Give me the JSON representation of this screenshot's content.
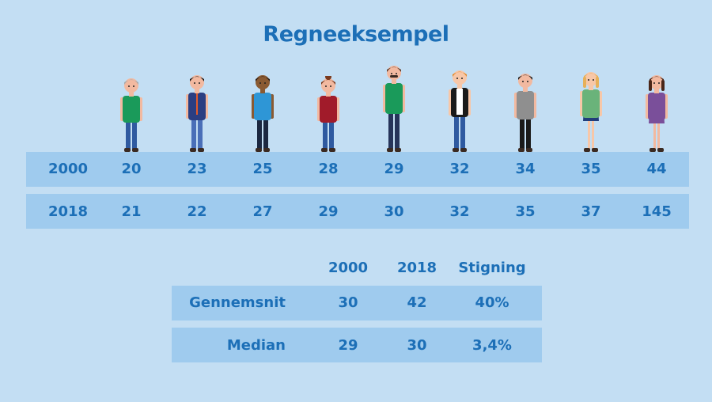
{
  "title": "Regneeksempel",
  "people": [
    {
      "icon": "elderly-woman-icon",
      "shirt": "#1a9a5a",
      "pants": "#2f5aa0",
      "hair": "#aaaaaa",
      "skin": "#f2b9a0"
    },
    {
      "icon": "man-in-suit-icon",
      "shirt": "#2b3e82",
      "pants": "#4a6fb8",
      "hair": "#1a1a1a",
      "skin": "#f2b9a0"
    },
    {
      "icon": "man-blue-shirt-icon",
      "shirt": "#2e96d6",
      "pants": "#1b2740",
      "hair": "#2a1a10",
      "skin": "#8a5a32"
    },
    {
      "icon": "girl-red-shirt-icon",
      "shirt": "#a11b2a",
      "pants": "#2f5aa0",
      "hair": "#7a3a1e",
      "skin": "#f2b9a0"
    },
    {
      "icon": "older-man-green-jacket-icon",
      "shirt": "#1a9a5a",
      "pants": "#26345a",
      "hair": "#5a3a2a",
      "skin": "#f2b9a0"
    },
    {
      "icon": "redhead-man-black-jacket-icon",
      "shirt": "#1a1a1a",
      "pants": "#2f5aa0",
      "hair": "#e2892a",
      "skin": "#f7c7a8"
    },
    {
      "icon": "man-grey-shirt-icon",
      "shirt": "#8f8f8f",
      "pants": "#1a1a1a",
      "hair": "#1a1a1a",
      "skin": "#f2b9a0"
    },
    {
      "icon": "blonde-woman-icon",
      "shirt": "#6ab37a",
      "pants": "#223d7a",
      "hair": "#e6b05a",
      "skin": "#f7c7a8"
    },
    {
      "icon": "woman-purple-dress-icon",
      "shirt": "#7a4f9a",
      "pants": "#7a4f9a",
      "hair": "#4a2618",
      "skin": "#f2b9a0"
    }
  ],
  "ages": {
    "rows": [
      {
        "year": "2000",
        "values": [
          "20",
          "23",
          "25",
          "28",
          "29",
          "32",
          "34",
          "35",
          "44"
        ]
      },
      {
        "year": "2018",
        "values": [
          "21",
          "22",
          "27",
          "29",
          "30",
          "32",
          "35",
          "37",
          "145"
        ]
      }
    ]
  },
  "summary": {
    "headers": [
      "2000",
      "2018",
      "Stigning"
    ],
    "rows": [
      {
        "label": "Gennemsnit",
        "values": [
          "30",
          "42",
          "40%"
        ]
      },
      {
        "label": "Median",
        "values": [
          "29",
          "30",
          "3,4%"
        ]
      }
    ]
  }
}
